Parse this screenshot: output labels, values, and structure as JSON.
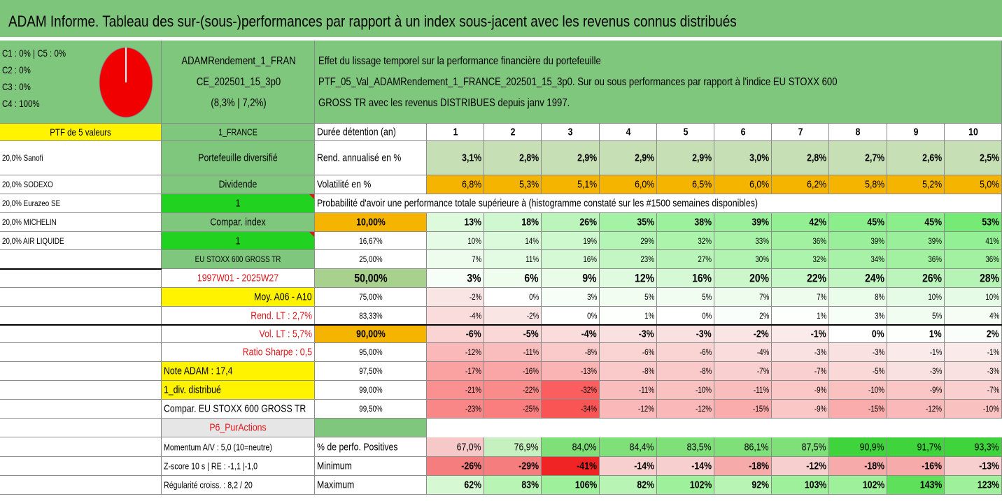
{
  "title": "ADAM Informe. Tableau des sur-(sous-)performances par rapport à un index sous-jacent avec les revenus connus distribués",
  "header": {
    "classes": [
      "C1 : 0% | C5 : 0%",
      "C2 : 0%",
      "C3 : 0%",
      "C4 : 100%"
    ],
    "portfolio_name_1": "ADAMRendement_1_FRAN",
    "portfolio_name_2": "CE_202501_15_3p0",
    "portfolio_perf": "(8,3% | 7,2%)",
    "desc_1": "Effet du lissage temporel sur la performance financière du portefeuille",
    "desc_2": "PTF_05_Val_ADAMRendement_1_FRANCE_202501_15_3p0. Sur ou sous performances par rapport à l'indice EU STOXX 600",
    "desc_3": "GROSS TR avec les revenus DISTRIBUES depuis janv 1997."
  },
  "left": {
    "ptf_label": "PTF de 5 valeurs",
    "holdings": [
      "20,0% Sanofi",
      "20,0% SODEXO",
      "20,0% Eurazeo SE",
      "20,0% MICHELIN",
      "20,0% AIR LIQUIDE"
    ]
  },
  "mid": {
    "country": "1_FRANCE",
    "type": "Portefeuille diversifié",
    "dividende": "Dividende",
    "one_a": "1",
    "compar_index": "Compar. index",
    "one_b": "1",
    "index_name": "EU STOXX 600 GROSS TR",
    "period": "1997W01 - 2025W27",
    "moy": "Moy. A06 - A10",
    "rend_lt": "Rend. LT : 2,7%",
    "vol_lt": "Vol. LT : 5,7%",
    "sharpe": "Ratio Sharpe : 0,5",
    "note": "Note ADAM : 17,4",
    "div": "1_div. distribué",
    "compar_full": "Compar. EU STOXX 600 GROSS TR",
    "p6": "P6_PurActions",
    "momentum": "Momentum A/V : 5,0 (10=neutre)",
    "zscore": "Z-score 10 s | RE : -1,1 |-1,0",
    "regul": "Régularité croiss. : 8,2 / 20"
  },
  "table": {
    "duree_label": "Durée détention (an)",
    "years": [
      "1",
      "2",
      "3",
      "4",
      "5",
      "6",
      "7",
      "8",
      "9",
      "10"
    ],
    "rend_label": "Rend. annualisé en %",
    "rend": [
      "3,1%",
      "2,8%",
      "2,9%",
      "2,9%",
      "2,9%",
      "3,0%",
      "2,8%",
      "2,7%",
      "2,6%",
      "2,5%"
    ],
    "vol_label": "Volatilité en %",
    "vol": [
      "6,8%",
      "5,3%",
      "5,1%",
      "6,0%",
      "6,5%",
      "6,0%",
      "6,2%",
      "5,8%",
      "5,2%",
      "5,0%"
    ],
    "prob_label": "Probabilité d'avoir une performance totale supérieure à (histogramme constaté sur les #1500 semaines disponibles)",
    "quantiles": [
      {
        "p": "10,00%",
        "v": [
          "13%",
          "18%",
          "26%",
          "35%",
          "38%",
          "39%",
          "42%",
          "45%",
          "45%",
          "53%"
        ]
      },
      {
        "p": "16,67%",
        "v": [
          "10%",
          "14%",
          "19%",
          "29%",
          "32%",
          "33%",
          "36%",
          "39%",
          "39%",
          "41%"
        ]
      },
      {
        "p": "25,00%",
        "v": [
          "7%",
          "11%",
          "16%",
          "23%",
          "27%",
          "30%",
          "32%",
          "34%",
          "36%",
          "36%"
        ]
      },
      {
        "p": "50,00%",
        "v": [
          "3%",
          "6%",
          "9%",
          "12%",
          "16%",
          "20%",
          "22%",
          "24%",
          "26%",
          "28%"
        ]
      },
      {
        "p": "75,00%",
        "v": [
          "-2%",
          "0%",
          "3%",
          "5%",
          "5%",
          "7%",
          "7%",
          "8%",
          "10%",
          "10%"
        ]
      },
      {
        "p": "83,33%",
        "v": [
          "-4%",
          "-2%",
          "0%",
          "1%",
          "0%",
          "2%",
          "1%",
          "3%",
          "5%",
          "4%"
        ]
      },
      {
        "p": "90,00%",
        "v": [
          "-6%",
          "-5%",
          "-4%",
          "-3%",
          "-3%",
          "-2%",
          "-1%",
          "0%",
          "1%",
          "2%"
        ]
      },
      {
        "p": "95,00%",
        "v": [
          "-12%",
          "-11%",
          "-8%",
          "-6%",
          "-6%",
          "-4%",
          "-3%",
          "-3%",
          "-1%",
          "-1%"
        ]
      },
      {
        "p": "97,50%",
        "v": [
          "-17%",
          "-16%",
          "-13%",
          "-8%",
          "-8%",
          "-7%",
          "-7%",
          "-5%",
          "-3%",
          "-3%"
        ]
      },
      {
        "p": "99,00%",
        "v": [
          "-21%",
          "-22%",
          "-32%",
          "-11%",
          "-10%",
          "-11%",
          "-9%",
          "-10%",
          "-9%",
          "-7%"
        ]
      },
      {
        "p": "99,50%",
        "v": [
          "-23%",
          "-25%",
          "-34%",
          "-12%",
          "-12%",
          "-15%",
          "-9%",
          "-15%",
          "-12%",
          "-10%"
        ]
      }
    ],
    "pos_label": "% de perfo. Positives",
    "pos": [
      "67,0%",
      "76,9%",
      "84,0%",
      "84,4%",
      "83,5%",
      "86,1%",
      "87,5%",
      "90,9%",
      "91,7%",
      "93,3%"
    ],
    "min_label": "Minimum",
    "min": [
      "-26%",
      "-29%",
      "-41%",
      "-14%",
      "-14%",
      "-18%",
      "-12%",
      "-18%",
      "-16%",
      "-13%"
    ],
    "max_label": "Maximum",
    "max": [
      "62%",
      "83%",
      "106%",
      "82%",
      "102%",
      "92%",
      "103%",
      "102%",
      "143%",
      "123%"
    ]
  },
  "colors": {
    "header_green": "#7dc57a",
    "yellow": "#fff300",
    "orange": "#f5b400",
    "pie": "#f00000",
    "red_text": "#e0161b"
  }
}
